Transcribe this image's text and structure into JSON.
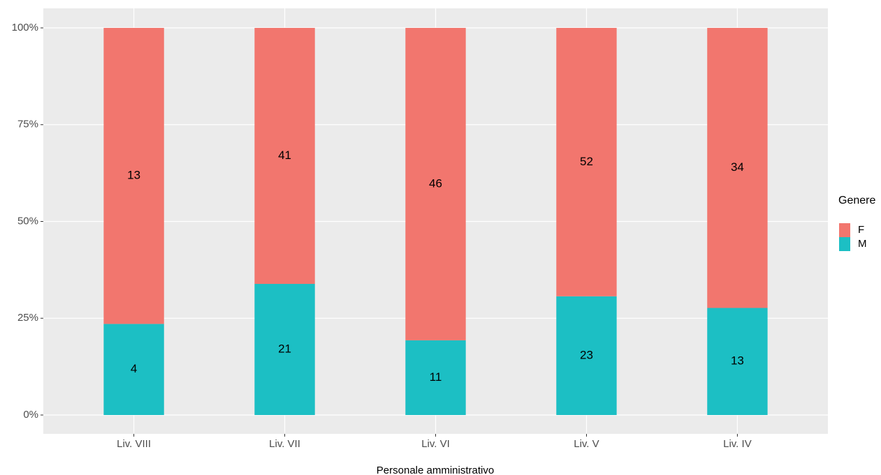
{
  "chart_data": {
    "type": "bar",
    "stacked": "percent",
    "x_label": "Personale amministrativo",
    "legend_title": "Genere",
    "categories": [
      "Liv. VIII",
      "Liv. VII",
      "Liv. VI",
      "Liv. V",
      "Liv. IV"
    ],
    "series": [
      {
        "name": "F",
        "color": "#f2766e",
        "values": [
          13,
          41,
          46,
          52,
          34
        ]
      },
      {
        "name": "M",
        "color": "#1cbfc4",
        "values": [
          4,
          21,
          11,
          23,
          13
        ]
      }
    ],
    "ylim": [
      0,
      100
    ],
    "yticks": [
      {
        "value": 0,
        "label": "0%"
      },
      {
        "value": 25,
        "label": "25%"
      },
      {
        "value": 50,
        "label": "50%"
      },
      {
        "value": 75,
        "label": "75%"
      },
      {
        "value": 100,
        "label": "100%"
      }
    ],
    "grid": true,
    "legend": "right"
  }
}
